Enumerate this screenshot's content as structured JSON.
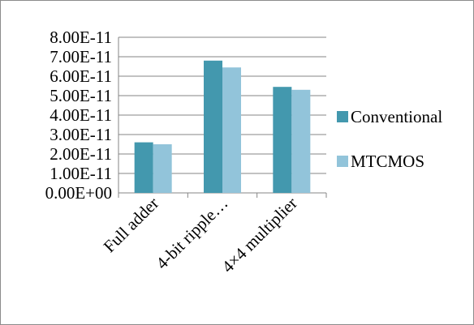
{
  "chart_data": {
    "type": "bar",
    "categories": [
      "Full adder",
      "4-bit ripple…",
      "4×4 multiplier"
    ],
    "series": [
      {
        "name": "Conventional",
        "values": [
          2.6e-11,
          6.8e-11,
          5.45e-11
        ],
        "color": "#4398AE"
      },
      {
        "name": "MTCMOS",
        "values": [
          2.5e-11,
          6.45e-11,
          5.3e-11
        ],
        "color": "#92C4DA"
      }
    ],
    "yticks": [
      "0.00E+00",
      "1.00E-11",
      "2.00E-11",
      "3.00E-11",
      "4.00E-11",
      "5.00E-11",
      "6.00E-11",
      "7.00E-11",
      "8.00E-11"
    ],
    "ylim": [
      0,
      8e-11
    ],
    "grid": true,
    "legend_position": "right"
  }
}
